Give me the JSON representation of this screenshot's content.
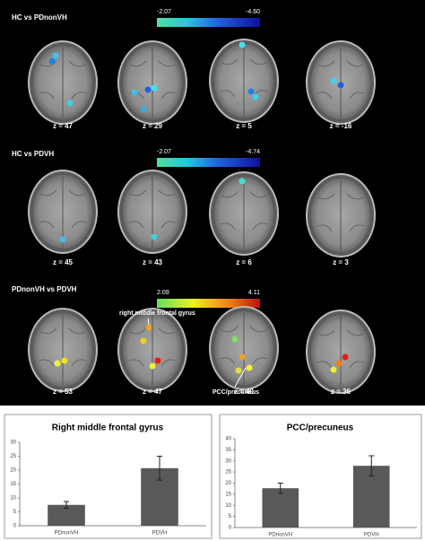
{
  "panels": [
    {
      "title": "HC vs PDnonVH",
      "colorbar": {
        "min_label": "-2.07",
        "max_label": "-4.60"
      },
      "slices": [
        "z = 47",
        "z = 29",
        "z = 5",
        "z = -16"
      ]
    },
    {
      "title": "HC vs PDVH",
      "colorbar": {
        "min_label": "-2.07",
        "max_label": "-4.74"
      },
      "slices": [
        "z = 45",
        "z = 43",
        "z = 6",
        "z = 3"
      ]
    },
    {
      "title": "PDnonVH vs PDVH",
      "colorbar": {
        "min_label": "2.09",
        "max_label": "4.11"
      },
      "slices": [
        "z = 53",
        "z = 47",
        "z = 40",
        "z = 36"
      ],
      "annotations": [
        "right middle frontal gyrus",
        "PCC/precuneus"
      ]
    }
  ],
  "chart_data": [
    {
      "type": "bar",
      "title": "Right middle frontal gyrus",
      "categories": [
        "PDnonVH",
        "PDVH"
      ],
      "values": [
        7.5,
        20.7
      ],
      "errors": [
        1.2,
        4.3
      ],
      "color": "#595959",
      "ylim": [
        0,
        30
      ],
      "yticks": [
        0,
        5,
        10,
        15,
        20,
        25,
        30
      ]
    },
    {
      "type": "bar",
      "title": "PCC/precuneus",
      "categories": [
        "PDnonVH",
        "PDVH"
      ],
      "values": [
        17.7,
        27.8
      ],
      "errors": [
        2.3,
        4.5
      ],
      "color": "#595959",
      "ylim": [
        0,
        40
      ],
      "yticks": [
        0,
        5,
        10,
        15,
        20,
        25,
        30,
        35,
        40
      ]
    }
  ]
}
